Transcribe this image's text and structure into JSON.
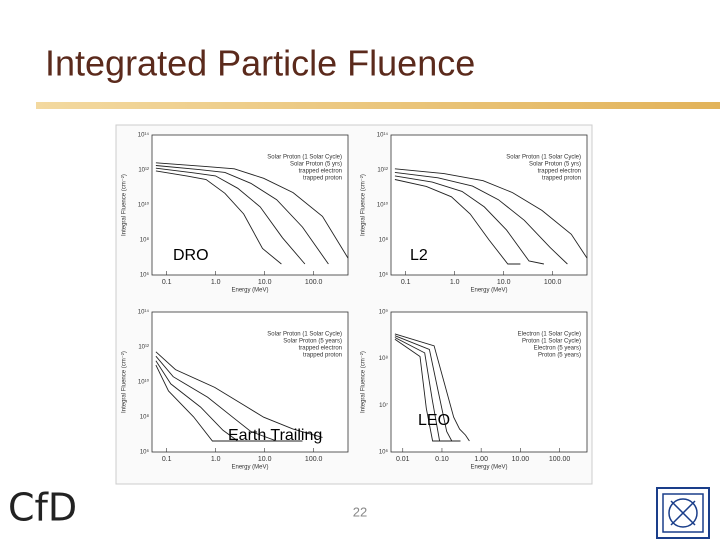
{
  "title": "Integrated Particle Fluence",
  "panels": [
    {
      "label": "DRO",
      "xlabel": "Energy (MeV)",
      "ylabel": "Integral Fluence (cm⁻²)",
      "xticks": [
        "0.1",
        "1.0",
        "10.0",
        "100.0"
      ],
      "yticks": [
        "10¹⁴",
        "10¹²",
        "10¹⁰",
        "10⁸",
        "10⁶"
      ],
      "legend": [
        "Solar Proton (1 Solar Cycle)",
        "Solar Proton (5 yrs)",
        "trapped electron",
        "trapped proton"
      ]
    },
    {
      "label": "L2",
      "xlabel": "Energy (MeV)",
      "ylabel": "Integral Fluence (cm⁻²)",
      "xticks": [
        "0.1",
        "1.0",
        "10.0",
        "100.0"
      ],
      "yticks": [
        "10¹⁴",
        "10¹²",
        "10¹⁰",
        "10⁸",
        "10⁶"
      ],
      "legend": [
        "Solar Proton (1 Solar Cycle)",
        "Solar Proton (5 yrs)",
        "trapped electron",
        "trapped proton"
      ]
    },
    {
      "label": "Earth Trailing",
      "xlabel": "Energy (MeV)",
      "ylabel": "Integral Fluence (cm⁻²)",
      "xticks": [
        "0.1",
        "1.0",
        "10.0",
        "100.0"
      ],
      "yticks": [
        "10¹⁴",
        "10¹²",
        "10¹⁰",
        "10⁸",
        "10⁶"
      ],
      "legend": [
        "Solar Proton (1 Solar Cycle)",
        "Solar Proton (5 years)",
        "trapped electron",
        "trapped proton"
      ]
    },
    {
      "label": "LEO",
      "xlabel": "Energy (MeV)",
      "ylabel": "Integral Fluence (cm⁻²)",
      "xticks": [
        "0.01",
        "0.10",
        "1.00",
        "10.00",
        "100.00"
      ],
      "yticks": [
        "10⁹",
        "10⁸",
        "10⁷",
        "10⁶"
      ],
      "legend": [
        "Electron (1 Solar Cycle)",
        "Proton (1 Solar Cycle)",
        "Electron (5 years)",
        "Proton (5 years)"
      ]
    }
  ],
  "footer": {
    "logo": "CfD",
    "page": "22"
  }
}
